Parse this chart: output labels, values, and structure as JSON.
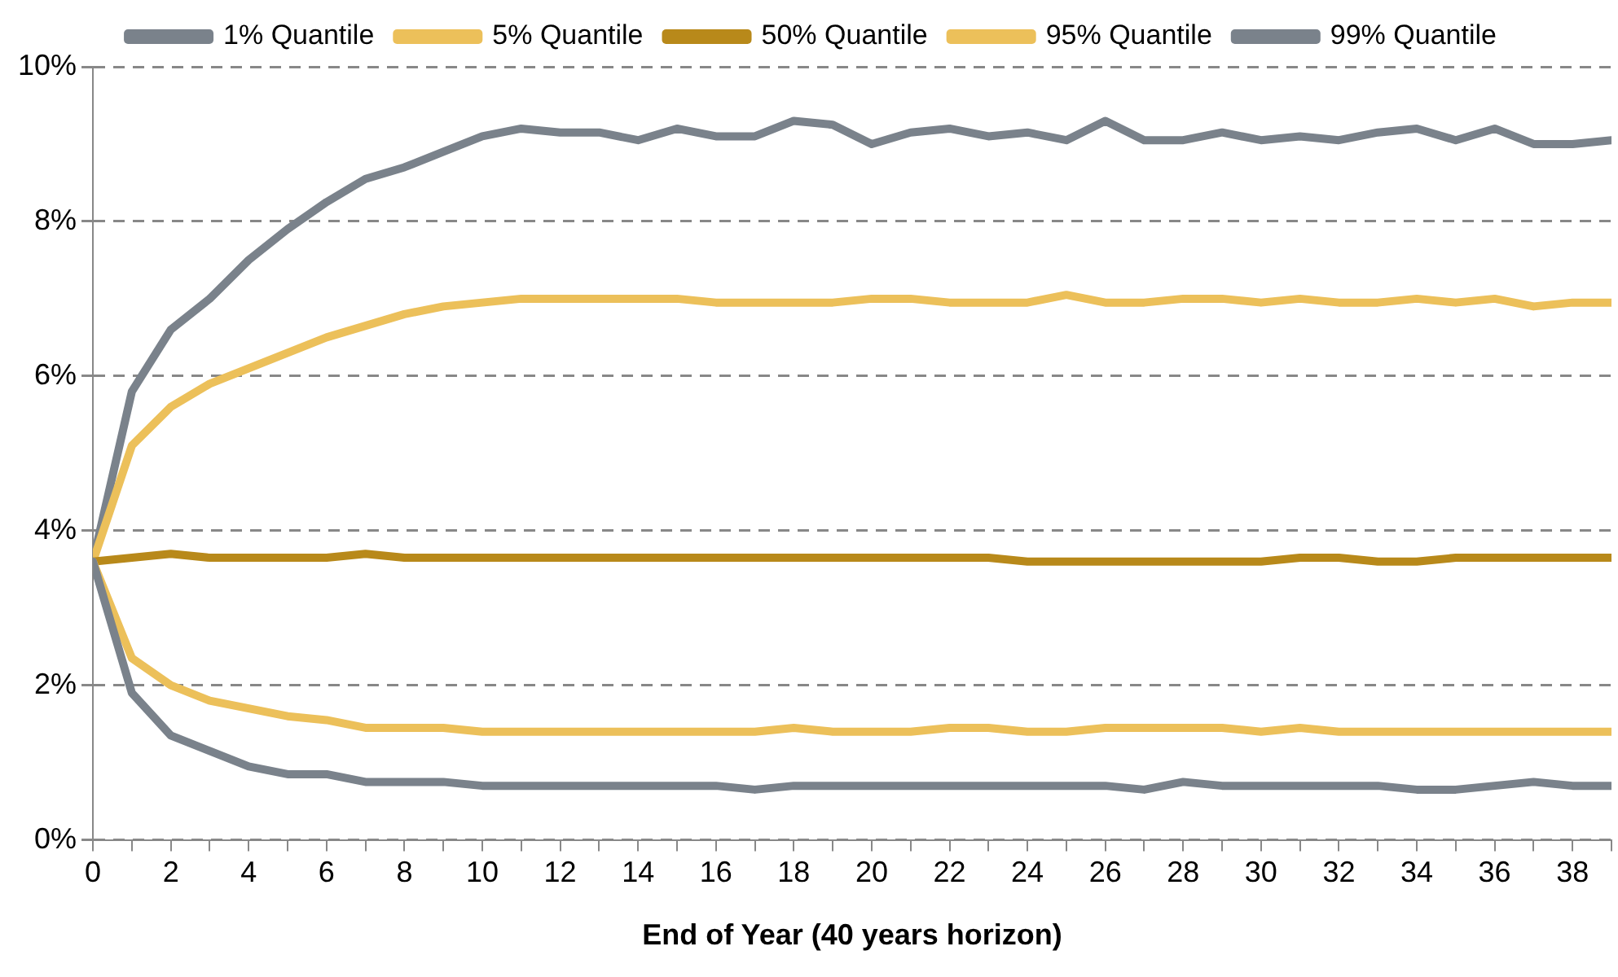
{
  "chart_data": {
    "type": "line",
    "xlabel": "End of Year (40 years horizon)",
    "x": [
      0,
      1,
      2,
      3,
      4,
      5,
      6,
      7,
      8,
      9,
      10,
      11,
      12,
      13,
      14,
      15,
      16,
      17,
      18,
      19,
      20,
      21,
      22,
      23,
      24,
      25,
      26,
      27,
      28,
      29,
      30,
      31,
      32,
      33,
      34,
      35,
      36,
      37,
      38,
      39
    ],
    "series": [
      {
        "name": "1% Quantile",
        "color": "#7a828b",
        "values": [
          3.6,
          1.9,
          1.35,
          1.15,
          0.95,
          0.85,
          0.85,
          0.75,
          0.75,
          0.75,
          0.7,
          0.7,
          0.7,
          0.7,
          0.7,
          0.7,
          0.7,
          0.65,
          0.7,
          0.7,
          0.7,
          0.7,
          0.7,
          0.7,
          0.7,
          0.7,
          0.7,
          0.65,
          0.75,
          0.7,
          0.7,
          0.7,
          0.7,
          0.7,
          0.65,
          0.65,
          0.7,
          0.75,
          0.7,
          0.7
        ]
      },
      {
        "name": "5% Quantile",
        "color": "#ecc05a",
        "values": [
          3.6,
          2.35,
          2.0,
          1.8,
          1.7,
          1.6,
          1.55,
          1.45,
          1.45,
          1.45,
          1.4,
          1.4,
          1.4,
          1.4,
          1.4,
          1.4,
          1.4,
          1.4,
          1.45,
          1.4,
          1.4,
          1.4,
          1.45,
          1.45,
          1.4,
          1.4,
          1.45,
          1.45,
          1.45,
          1.45,
          1.4,
          1.45,
          1.4,
          1.4,
          1.4,
          1.4,
          1.4,
          1.4,
          1.4,
          1.4
        ]
      },
      {
        "name": "50% Quantile",
        "color": "#b8891a",
        "values": [
          3.6,
          3.65,
          3.7,
          3.65,
          3.65,
          3.65,
          3.65,
          3.7,
          3.65,
          3.65,
          3.65,
          3.65,
          3.65,
          3.65,
          3.65,
          3.65,
          3.65,
          3.65,
          3.65,
          3.65,
          3.65,
          3.65,
          3.65,
          3.65,
          3.6,
          3.6,
          3.6,
          3.6,
          3.6,
          3.6,
          3.6,
          3.65,
          3.65,
          3.6,
          3.6,
          3.65,
          3.65,
          3.65,
          3.65,
          3.65
        ]
      },
      {
        "name": "95% Quantile",
        "color": "#ecc05a",
        "values": [
          3.6,
          5.1,
          5.6,
          5.9,
          6.1,
          6.3,
          6.5,
          6.65,
          6.8,
          6.9,
          6.95,
          7.0,
          7.0,
          7.0,
          7.0,
          7.0,
          6.95,
          6.95,
          6.95,
          6.95,
          7.0,
          7.0,
          6.95,
          6.95,
          6.95,
          7.05,
          6.95,
          6.95,
          7.0,
          7.0,
          6.95,
          7.0,
          6.95,
          6.95,
          7.0,
          6.95,
          7.0,
          6.9,
          6.95,
          6.95
        ]
      },
      {
        "name": "99% Quantile",
        "color": "#7a828b",
        "values": [
          3.6,
          5.8,
          6.6,
          7.0,
          7.5,
          7.9,
          8.25,
          8.55,
          8.7,
          8.9,
          9.1,
          9.2,
          9.15,
          9.15,
          9.05,
          9.2,
          9.1,
          9.1,
          9.3,
          9.25,
          9.0,
          9.15,
          9.2,
          9.1,
          9.15,
          9.05,
          9.3,
          9.05,
          9.05,
          9.15,
          9.05,
          9.1,
          9.05,
          9.15,
          9.2,
          9.05,
          9.2,
          9.0,
          9.0,
          9.05
        ]
      }
    ],
    "xlim": [
      0,
      39
    ],
    "xticks": [
      0,
      {
        "value": 1,
        "label": null
      },
      2,
      {
        "value": 3,
        "label": null
      },
      4,
      {
        "value": 5,
        "label": null
      },
      6,
      {
        "value": 7,
        "label": null
      },
      8,
      {
        "value": 9,
        "label": null
      },
      10,
      {
        "value": 11,
        "label": null
      },
      12,
      {
        "value": 13,
        "label": null
      },
      14,
      {
        "value": 15,
        "label": null
      },
      16,
      {
        "value": 17,
        "label": null
      },
      18,
      {
        "value": 19,
        "label": null
      },
      20,
      {
        "value": 21,
        "label": null
      },
      22,
      {
        "value": 23,
        "label": null
      },
      24,
      {
        "value": 25,
        "label": null
      },
      26,
      {
        "value": 27,
        "label": null
      },
      28,
      {
        "value": 29,
        "label": null
      },
      30,
      {
        "value": 31,
        "label": null
      },
      32,
      {
        "value": 33,
        "label": null
      },
      34,
      {
        "value": 35,
        "label": null
      },
      36,
      {
        "value": 37,
        "label": null
      },
      38,
      {
        "value": 39,
        "label": null
      }
    ],
    "ylim": [
      0,
      10
    ],
    "yticks": [
      {
        "value": 0,
        "label": "0%"
      },
      {
        "value": 2,
        "label": "2%"
      },
      {
        "value": 4,
        "label": "4%"
      },
      {
        "value": 6,
        "label": "6%"
      },
      {
        "value": 8,
        "label": "8%"
      },
      {
        "value": 10,
        "label": "10%"
      }
    ],
    "grid": "y",
    "legend": "top",
    "marker": "none",
    "line_style": "solid"
  }
}
